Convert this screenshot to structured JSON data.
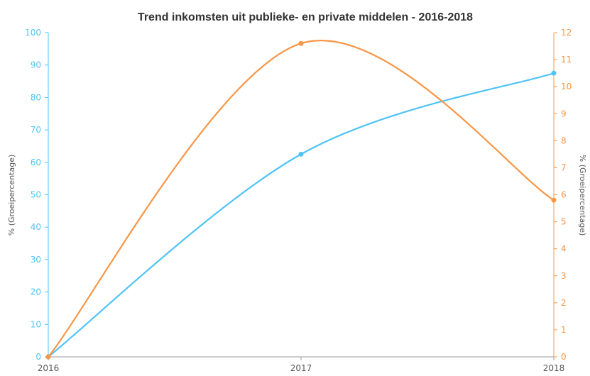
{
  "chart_data": {
    "type": "line",
    "title": "Trend inkomsten uit publieke- en private middelen - 2016-2018",
    "x": [
      "2016",
      "2017",
      "2018"
    ],
    "y_left_label": "% (Groeipercentage)",
    "y_right_label": "% (Groeipercentage)",
    "y_left_lim": [
      0,
      100
    ],
    "y_right_lim": [
      0,
      12
    ],
    "y_left_ticks": [
      "0",
      "10",
      "20",
      "30",
      "40",
      "50",
      "60",
      "70",
      "80",
      "90",
      "100"
    ],
    "y_right_ticks": [
      "0",
      "1",
      "2",
      "3",
      "4",
      "5",
      "6",
      "7",
      "8",
      "9",
      "10",
      "11",
      "12"
    ],
    "grid": false,
    "series": [
      {
        "axis": "left",
        "color": "#4fc3f7",
        "values": [
          0,
          62.5,
          87.5
        ]
      },
      {
        "axis": "right",
        "color": "#f79646",
        "values": [
          0,
          11.6,
          5.8
        ]
      }
    ]
  }
}
